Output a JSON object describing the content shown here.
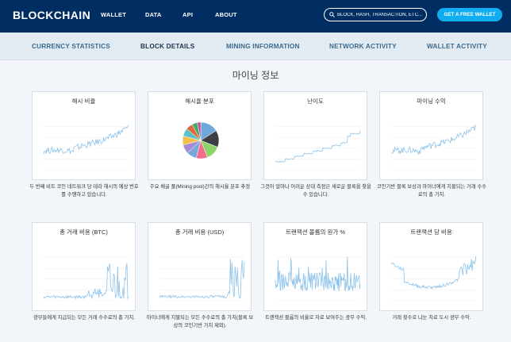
{
  "header": {
    "logo": "BLOCKCHAIN",
    "nav": [
      "WALLET",
      "DATA",
      "API",
      "ABOUT"
    ],
    "search_placeholder": "BLOCK, HASH, TRANSACTION, ETC...",
    "cta_label": "GET A FREE WALLET"
  },
  "subnav": {
    "items": [
      "CURRENCY STATISTICS",
      "BLOCK DETAILS",
      "MINING INFORMATION",
      "NETWORK ACTIVITY",
      "WALLET ACTIVITY"
    ],
    "active": "BLOCK DETAILS"
  },
  "page": {
    "title": "마이닝 정보"
  },
  "cards": [
    {
      "title": "해시 비율",
      "desc": "두 번째 비트 코인 네트워크 당 테라 해시의 예상 번호를 수행하고 있습니다."
    },
    {
      "title": "해시율 분포",
      "desc": "주요 채굴 풀(Mining pool)간의 해시율 분포 추정"
    },
    {
      "title": "난이도",
      "desc": "그것이 얼마나 어려운 상대 측정은 새로운 블록을 찾을 수 있습니다."
    },
    {
      "title": "마이닝 수익",
      "desc": "코인기반 블록 보상과 마이너에게 지불되는 거래 수수료의 총 가치."
    },
    {
      "title": "총 거래 비용 (BTC)",
      "desc": "광부들에게 지급되는 모든 거래 수수료의 총 가치."
    },
    {
      "title": "총 거래 비용 (USD)",
      "desc": "마이너에게 지불되는 모든 수수료의 총 가치(블록 보상의 코인기반 가치 제외)."
    },
    {
      "title": "트랜잭션 볼륨의 원가 %",
      "desc": "트랜잭션 볼륨의 비율로 자료 보여주는 광부 수익."
    },
    {
      "title": "트랜잭션 당 비용",
      "desc": "거래 횟수로 나눈 자료 도시 광부 수익."
    }
  ],
  "colors": {
    "header_bg": "#002e63",
    "accent": "#10adf1",
    "subnav_bg": "#e2eaf2",
    "chart_line": "#8ec3ea",
    "pie": [
      "#6fa8dc",
      "#3c3f45",
      "#8fd46a",
      "#f36d8a",
      "#7aa6d9",
      "#a78bd4",
      "#f3c14b",
      "#5cc1c8",
      "#e06a3b",
      "#4aa86a",
      "#c94c8a"
    ]
  },
  "icons": {
    "search": "search-icon"
  }
}
